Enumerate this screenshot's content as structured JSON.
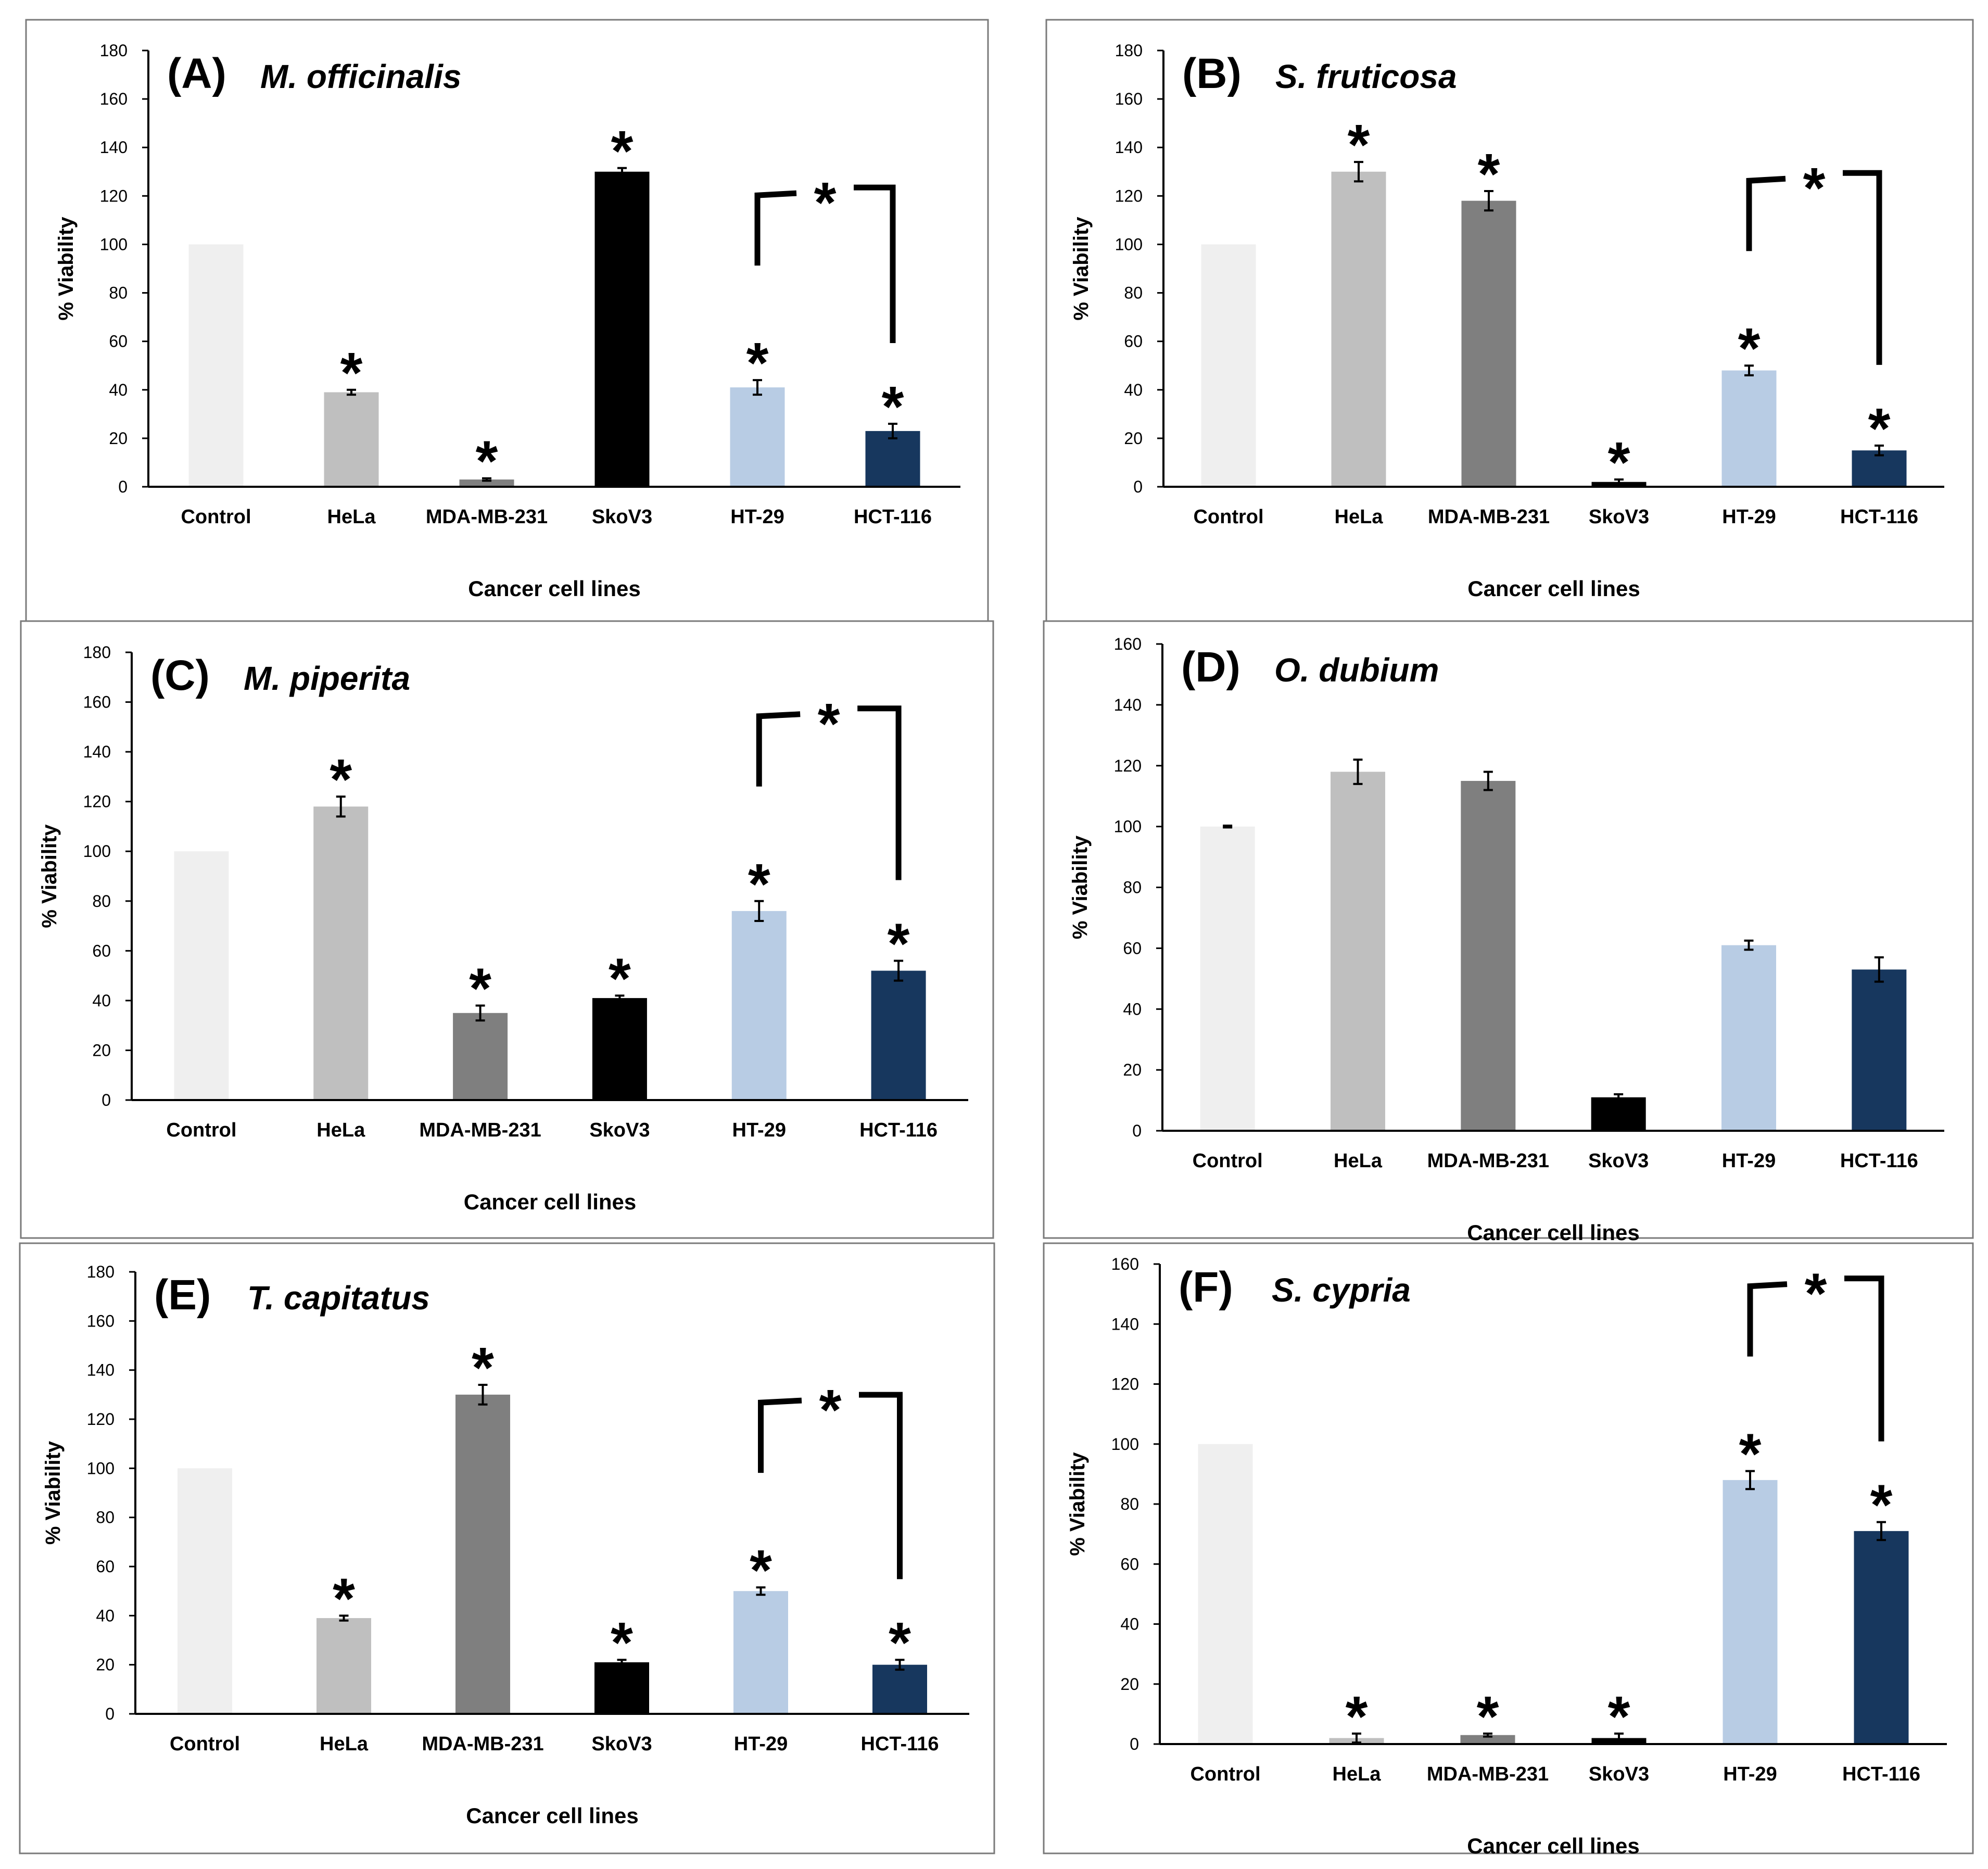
{
  "chart_data": [
    {
      "type": "bar",
      "panel": "(A)",
      "title": "M. officinalis",
      "xlabel": "Cancer cell lines",
      "ylabel": "% Viability",
      "ylim": [
        0,
        180
      ],
      "yticks": [
        "0",
        "20",
        "40",
        "60",
        "80",
        "100",
        "120",
        "140",
        "160",
        "180"
      ],
      "categories": [
        "Control",
        "HeLa",
        "MDA-MB-231",
        "SkoV3",
        "HT-29",
        "HCT-116"
      ],
      "values": [
        100,
        39,
        3,
        130,
        41,
        23
      ],
      "errors": [
        0,
        1,
        0.5,
        1.5,
        3,
        3
      ],
      "significance": [
        "",
        "*",
        "*",
        "*",
        "*",
        "*"
      ],
      "bracket": {
        "from": "HT-29",
        "to": "HCT-116",
        "label": "*"
      }
    },
    {
      "type": "bar",
      "panel": "(B)",
      "title": "S. fruticosa",
      "xlabel": "Cancer cell lines",
      "ylabel": "% Viability",
      "ylim": [
        0,
        180
      ],
      "yticks": [
        "0",
        "20",
        "40",
        "60",
        "80",
        "100",
        "120",
        "140",
        "160",
        "180"
      ],
      "categories": [
        "Control",
        "HeLa",
        "MDA-MB-231",
        "SkoV3",
        "HT-29",
        "HCT-116"
      ],
      "values": [
        100,
        130,
        118,
        2,
        48,
        15
      ],
      "errors": [
        0,
        4,
        4,
        1,
        2,
        2
      ],
      "significance": [
        "",
        "*",
        "*",
        "*",
        "*",
        "*"
      ],
      "bracket": {
        "from": "HT-29",
        "to": "HCT-116",
        "label": "*"
      }
    },
    {
      "type": "bar",
      "panel": "(C)",
      "title": "M. piperita",
      "xlabel": "Cancer cell lines",
      "ylabel": "% Viability",
      "ylim": [
        0,
        180
      ],
      "yticks": [
        "0",
        "20",
        "40",
        "60",
        "80",
        "100",
        "120",
        "140",
        "160",
        "180"
      ],
      "categories": [
        "Control",
        "HeLa",
        "MDA-MB-231",
        "SkoV3",
        "HT-29",
        "HCT-116"
      ],
      "values": [
        100,
        118,
        35,
        41,
        76,
        52
      ],
      "errors": [
        0,
        4,
        3,
        1,
        4,
        4
      ],
      "significance": [
        "",
        "*",
        "*",
        "*",
        "*",
        "*"
      ],
      "bracket": {
        "from": "HT-29",
        "to": "HCT-116",
        "label": "*"
      }
    },
    {
      "type": "bar",
      "panel": "(D)",
      "title": "O. dubium",
      "xlabel": "Cancer cell lines",
      "ylabel": "% Viability",
      "ylim": [
        0,
        160
      ],
      "yticks": [
        "0",
        "20",
        "40",
        "60",
        "80",
        "100",
        "120",
        "140",
        "160"
      ],
      "categories": [
        "Control",
        "HeLa",
        "MDA-MB-231",
        "SkoV3",
        "HT-29",
        "HCT-116"
      ],
      "values": [
        100,
        118,
        115,
        11,
        61,
        53
      ],
      "errors": [
        0.3,
        4,
        3,
        1,
        1.5,
        4
      ],
      "significance": [
        "",
        "",
        "",
        "",
        "",
        ""
      ],
      "bracket": null
    },
    {
      "type": "bar",
      "panel": "(E)",
      "title": "T. capitatus",
      "xlabel": "Cancer cell lines",
      "ylabel": "% Viability",
      "ylim": [
        0,
        180
      ],
      "yticks": [
        "0",
        "20",
        "40",
        "60",
        "80",
        "100",
        "120",
        "140",
        "160",
        "180"
      ],
      "categories": [
        "Control",
        "HeLa",
        "MDA-MB-231",
        "SkoV3",
        "HT-29",
        "HCT-116"
      ],
      "values": [
        100,
        39,
        130,
        21,
        50,
        20
      ],
      "errors": [
        0,
        1,
        4,
        1,
        1.5,
        2
      ],
      "significance": [
        "",
        "*",
        "*",
        "*",
        "*",
        "*"
      ],
      "bracket": {
        "from": "HT-29",
        "to": "HCT-116",
        "label": "*"
      }
    },
    {
      "type": "bar",
      "panel": "(F)",
      "title": "S. cypria",
      "xlabel": "Cancer cell lines",
      "ylabel": "% Viability",
      "ylim": [
        0,
        160
      ],
      "yticks": [
        "0",
        "20",
        "40",
        "60",
        "80",
        "100",
        "120",
        "140",
        "160"
      ],
      "categories": [
        "Control",
        "HeLa",
        "MDA-MB-231",
        "SkoV3",
        "HT-29",
        "HCT-116"
      ],
      "values": [
        100,
        2,
        3,
        2,
        88,
        71
      ],
      "errors": [
        0,
        1.5,
        0.5,
        1.5,
        3,
        3
      ],
      "significance": [
        "",
        "*",
        "*",
        "*",
        "*",
        "*"
      ],
      "bracket": {
        "from": "HT-29",
        "to": "HCT-116",
        "label": "*"
      }
    }
  ],
  "colors": {
    "Control": "#efefef",
    "HeLa": "#bfbfbf",
    "MDA-MB-231": "#7f7f7f",
    "SkoV3": "#000000",
    "HT-29": "#b8cce4",
    "HCT-116": "#17375e"
  }
}
